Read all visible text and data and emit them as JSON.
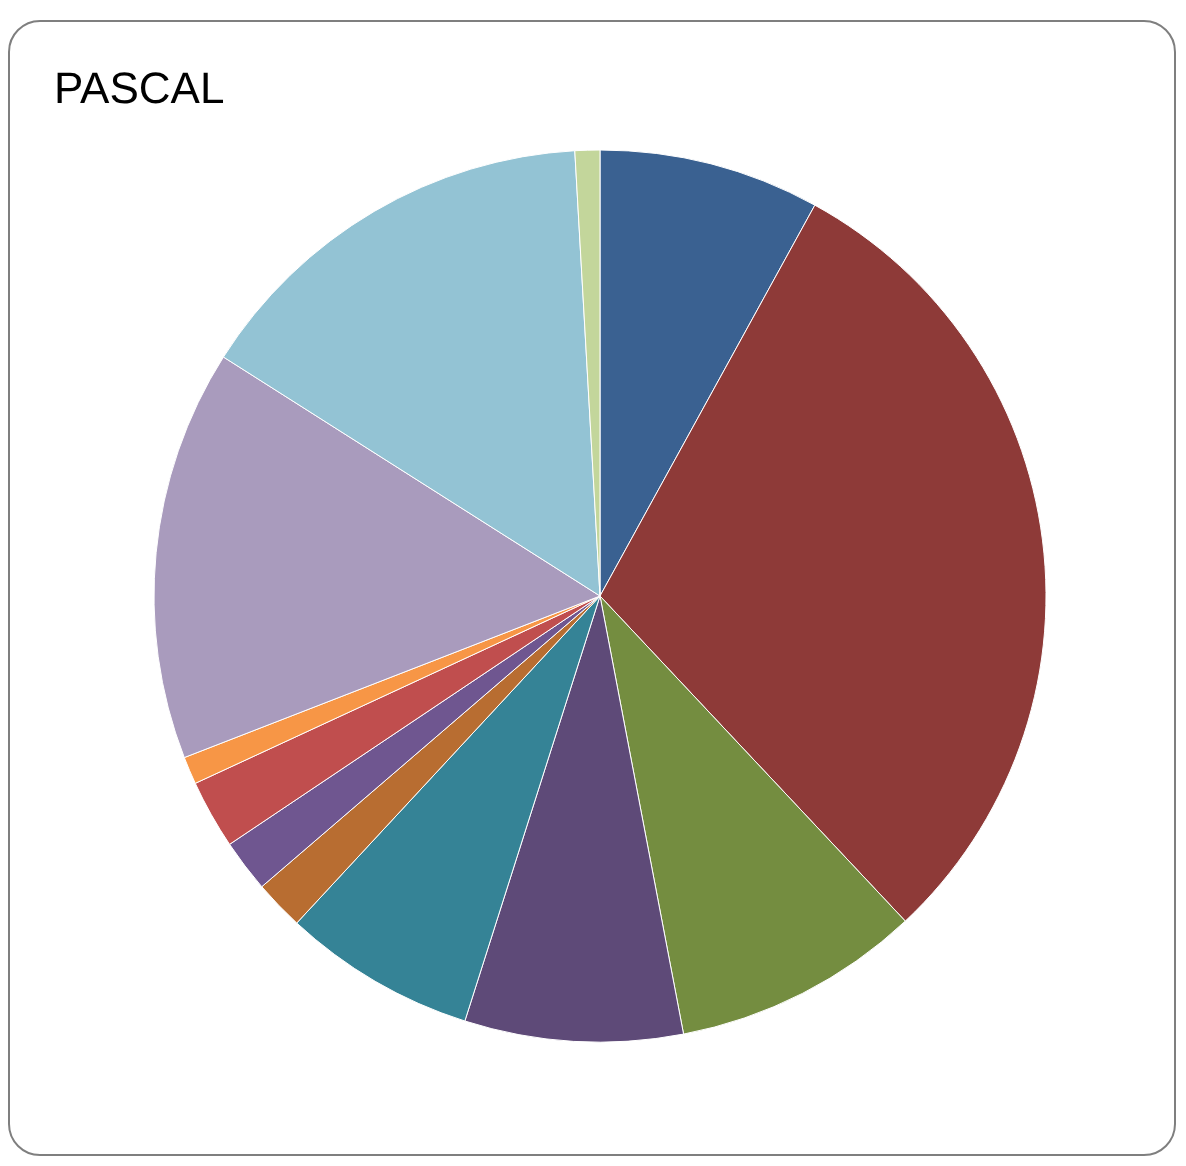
{
  "chart_data": {
    "type": "pie",
    "title": "PASCAL",
    "categories": [
      null,
      null,
      null,
      null,
      null,
      null,
      null,
      null,
      null,
      null,
      null,
      null
    ],
    "values": [
      8,
      30,
      9,
      7.9,
      7,
      1.8,
      1.9,
      2.5,
      1,
      14.9,
      15.1,
      0.9
    ],
    "colors": [
      "#3a6191",
      "#8e3a38",
      "#748d40",
      "#5e4a78",
      "#358396",
      "#b86d31",
      "#6f5690",
      "#c04e4e",
      "#f79646",
      "#a99bbd",
      "#93c3d4",
      "#c3d69b"
    ]
  }
}
